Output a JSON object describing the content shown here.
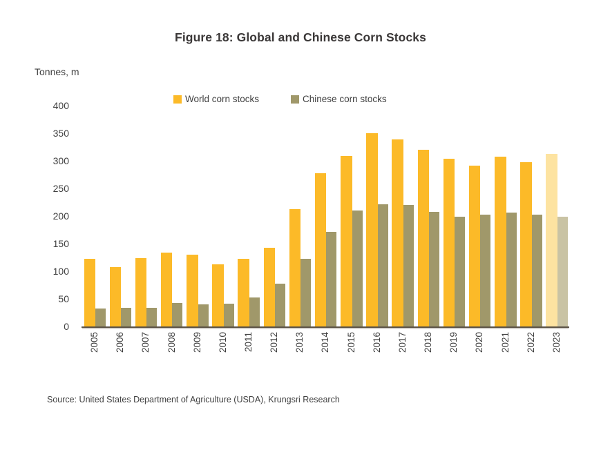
{
  "title": "Figure 18: Global and Chinese Corn Stocks",
  "y_axis_unit": "Tonnes, m",
  "source": "Source: United States Department of Agriculture (USDA), Krungsri Research",
  "colors": {
    "world_bar": "#fcba28",
    "world_bar_forecast": "#fde3a1",
    "chinese_bar": "#a0986a",
    "chinese_bar_forecast": "#c9c3a4",
    "axis_line": "#5b5246",
    "text": "#404040",
    "title_text": "#3b3838"
  },
  "chart_data": {
    "type": "bar",
    "title": "Figure 18: Global and Chinese Corn Stocks",
    "ylabel": "Tonnes, m",
    "xlabel": "",
    "ylim": [
      0,
      400
    ],
    "yticks": [
      0,
      50,
      100,
      150,
      200,
      250,
      300,
      350,
      400
    ],
    "grid": false,
    "legend_position": "top",
    "categories": [
      "2005",
      "2006",
      "2007",
      "2008",
      "2009",
      "2010",
      "2011",
      "2012",
      "2013",
      "2014",
      "2015",
      "2016",
      "2017",
      "2018",
      "2019",
      "2020",
      "2021",
      "2022",
      "2023"
    ],
    "forecast_categories": [
      "2023"
    ],
    "series": [
      {
        "name": "World corn stocks",
        "color": "#fcba28",
        "forecast_color": "#fde3a1",
        "values": [
          122,
          107,
          124,
          134,
          130,
          113,
          122,
          143,
          212,
          277,
          309,
          350,
          339,
          320,
          304,
          291,
          308,
          297,
          313
        ]
      },
      {
        "name": "Chinese corn stocks",
        "color": "#a0986a",
        "forecast_color": "#c9c3a4",
        "values": [
          32,
          34,
          34,
          42,
          40,
          41,
          53,
          78,
          122,
          171,
          210,
          221,
          220,
          208,
          199,
          203,
          206,
          203,
          199
        ]
      }
    ]
  }
}
